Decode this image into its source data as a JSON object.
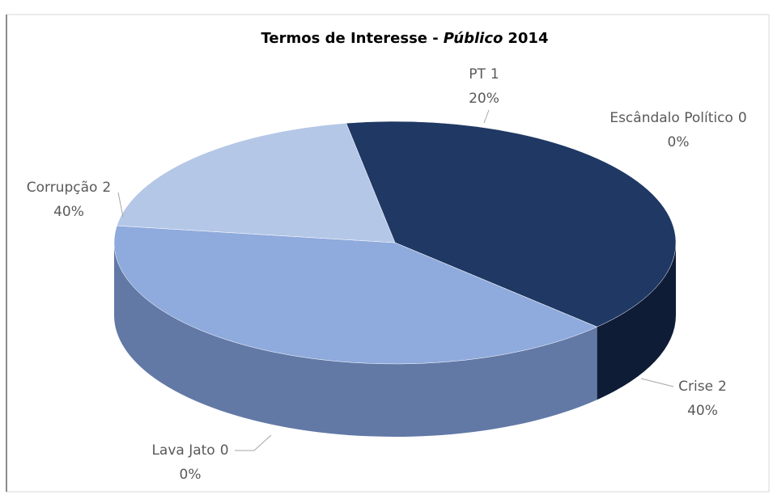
{
  "chart_data": {
    "type": "pie3d",
    "title": "Termos de Interesse -",
    "title_italic": "Público",
    "title_year": "2014",
    "categories": [
      "Escândalo Político",
      "Crise",
      "Lava Jato",
      "Corrupção",
      "PT"
    ],
    "values": [
      0,
      2,
      0,
      2,
      1
    ],
    "percentage_labels": [
      "0%",
      "40%",
      "0%",
      "40%",
      "20%"
    ],
    "colors": [
      "#4472c4",
      "#1f3864",
      "#2f5597",
      "#8faadc",
      "#b4c7e7"
    ],
    "side_colors": [
      "#2f5597",
      "#0f1c36",
      "#1f3864",
      "#6279a6",
      "#8ea3c8"
    ]
  }
}
